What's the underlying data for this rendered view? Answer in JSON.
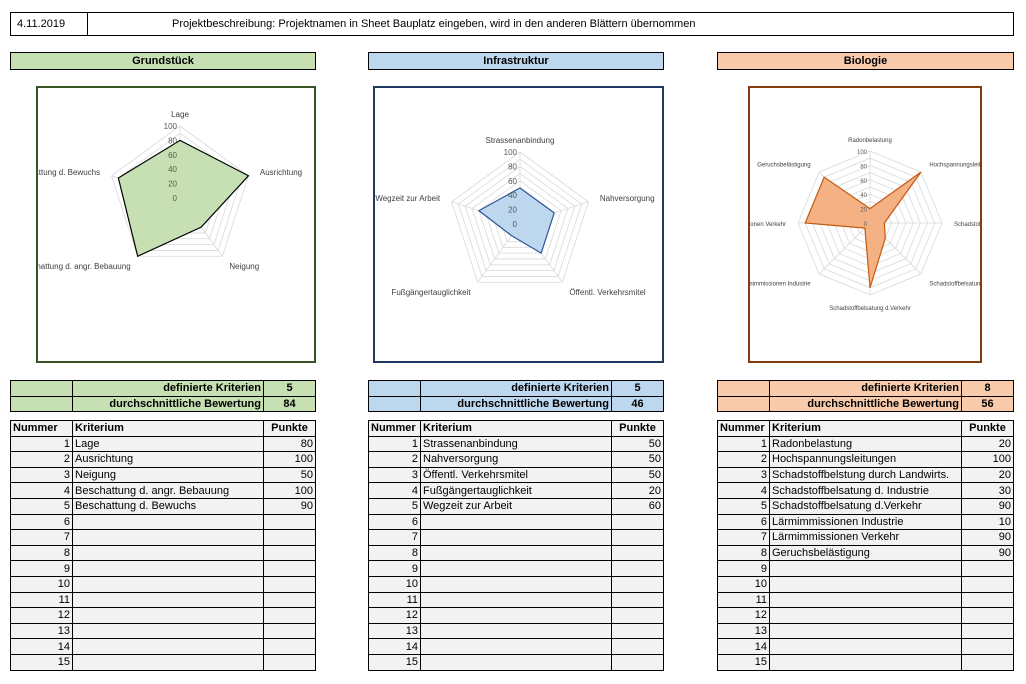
{
  "date": "4.11.2019",
  "description": "Projektbeschreibung:  Projektnamen  in Sheet Bauplatz eingeben, wird in den anderen Blättern übernommen",
  "table_headers": {
    "number": "Nummer",
    "criterion": "Kriterium",
    "points": "Punkte"
  },
  "summary_labels": {
    "defined": "definierte Kriterien",
    "average": "durchschnittliche Bewertung"
  },
  "sections": [
    {
      "title": "Grundstück",
      "header_color": "#c6e0b4",
      "fill_color": "#c6e0b4",
      "stroke_color": "#000000",
      "frame_color": "#375623",
      "defined_count": "5",
      "average": "84",
      "rows": [
        {
          "n": "1",
          "k": "Lage",
          "p": "80"
        },
        {
          "n": "2",
          "k": "Ausrichtung",
          "p": "100"
        },
        {
          "n": "3",
          "k": "Neigung",
          "p": "50"
        },
        {
          "n": "4",
          "k": "Beschattung d. angr. Bebauung",
          "p": "100"
        },
        {
          "n": "5",
          "k": "Beschattung d. Bewuchs",
          "p": "90"
        },
        {
          "n": "6",
          "k": "",
          "p": ""
        },
        {
          "n": "7",
          "k": "",
          "p": ""
        },
        {
          "n": "8",
          "k": "",
          "p": ""
        },
        {
          "n": "9",
          "k": "",
          "p": ""
        },
        {
          "n": "10",
          "k": "",
          "p": ""
        },
        {
          "n": "11",
          "k": "",
          "p": ""
        },
        {
          "n": "12",
          "k": "",
          "p": ""
        },
        {
          "n": "13",
          "k": "",
          "p": ""
        },
        {
          "n": "14",
          "k": "",
          "p": ""
        },
        {
          "n": "15",
          "k": "",
          "p": ""
        }
      ],
      "chart_data": {
        "type": "radar",
        "categories": [
          "Lage",
          "Ausrichtung",
          "Neigung",
          "Beschattung d. angr. Bebauung",
          "Beschattung d. Bewuchs"
        ],
        "values": [
          80,
          100,
          50,
          100,
          90
        ],
        "ticks": [
          "0",
          "20",
          "40",
          "60",
          "80",
          "100"
        ],
        "range": [
          0,
          100
        ]
      }
    },
    {
      "title": "Infrastruktur",
      "header_color": "#bdd7ee",
      "fill_color": "#bdd7ee",
      "stroke_color": "#2f5597",
      "frame_color": "#1f3864",
      "defined_count": "5",
      "average": "46",
      "rows": [
        {
          "n": "1",
          "k": "Strassenanbindung",
          "p": "50"
        },
        {
          "n": "2",
          "k": "Nahversorgung",
          "p": "50"
        },
        {
          "n": "3",
          "k": "Öffentl. Verkehrsmitel",
          "p": "50"
        },
        {
          "n": "4",
          "k": "Fußgängertauglichkeit",
          "p": "20"
        },
        {
          "n": "5",
          "k": "Wegzeit zur Arbeit",
          "p": "60"
        },
        {
          "n": "6",
          "k": "",
          "p": ""
        },
        {
          "n": "7",
          "k": "",
          "p": ""
        },
        {
          "n": "8",
          "k": "",
          "p": ""
        },
        {
          "n": "9",
          "k": "",
          "p": ""
        },
        {
          "n": "10",
          "k": "",
          "p": ""
        },
        {
          "n": "11",
          "k": "",
          "p": ""
        },
        {
          "n": "12",
          "k": "",
          "p": ""
        },
        {
          "n": "13",
          "k": "",
          "p": ""
        },
        {
          "n": "14",
          "k": "",
          "p": ""
        },
        {
          "n": "15",
          "k": "",
          "p": ""
        }
      ],
      "chart_data": {
        "type": "radar",
        "categories": [
          "Strassenanbindung",
          "Nahversorgung",
          "Öffentl. Verkehrsmitel",
          "Fußgängertauglichkeit",
          "Wegzeit zur Arbeit"
        ],
        "values": [
          50,
          50,
          50,
          20,
          60
        ],
        "ticks": [
          "0",
          "20",
          "40",
          "60",
          "80",
          "100"
        ],
        "range": [
          0,
          100
        ]
      }
    },
    {
      "title": "Biologie",
      "header_color": "#f8cbad",
      "fill_color": "#f4b183",
      "stroke_color": "#c55a11",
      "frame_color": "#843c0c",
      "defined_count": "8",
      "average": "56",
      "rows": [
        {
          "n": "1",
          "k": "Radonbelastung",
          "p": "20"
        },
        {
          "n": "2",
          "k": "Hochspannungsleitungen",
          "p": "100"
        },
        {
          "n": "3",
          "k": "Schadstoffbelstung durch Landwirts.",
          "p": "20"
        },
        {
          "n": "4",
          "k": "Schadstoffbelsatung d. Industrie",
          "p": "30"
        },
        {
          "n": "5",
          "k": "Schadstoffbelsatung d.Verkehr",
          "p": "90"
        },
        {
          "n": "6",
          "k": "Lärmimmissionen Industrie",
          "p": "10"
        },
        {
          "n": "7",
          "k": "Lärmimmissionen Verkehr",
          "p": "90"
        },
        {
          "n": "8",
          "k": "Geruchsbelästigung",
          "p": "90"
        },
        {
          "n": "9",
          "k": "",
          "p": ""
        },
        {
          "n": "10",
          "k": "",
          "p": ""
        },
        {
          "n": "11",
          "k": "",
          "p": ""
        },
        {
          "n": "12",
          "k": "",
          "p": ""
        },
        {
          "n": "13",
          "k": "",
          "p": ""
        },
        {
          "n": "14",
          "k": "",
          "p": ""
        },
        {
          "n": "15",
          "k": "",
          "p": ""
        }
      ],
      "chart_data": {
        "type": "radar",
        "categories": [
          "Radonbelastung",
          "Hochspannungsleitungen",
          "Schadstoffbelstung durch Landwirts.",
          "Schadstoffbelsatung d. Industrie",
          "Schadstoffbelsatung d.Verkehr",
          "Lärmimmissionen Industrie",
          "Lärmimmissionen Verkehr",
          "Geruchsbelästigung"
        ],
        "values": [
          20,
          100,
          20,
          30,
          90,
          10,
          90,
          90
        ],
        "ticks": [
          "0",
          "20",
          "40",
          "60",
          "80",
          "100"
        ],
        "range": [
          0,
          100
        ]
      }
    }
  ]
}
